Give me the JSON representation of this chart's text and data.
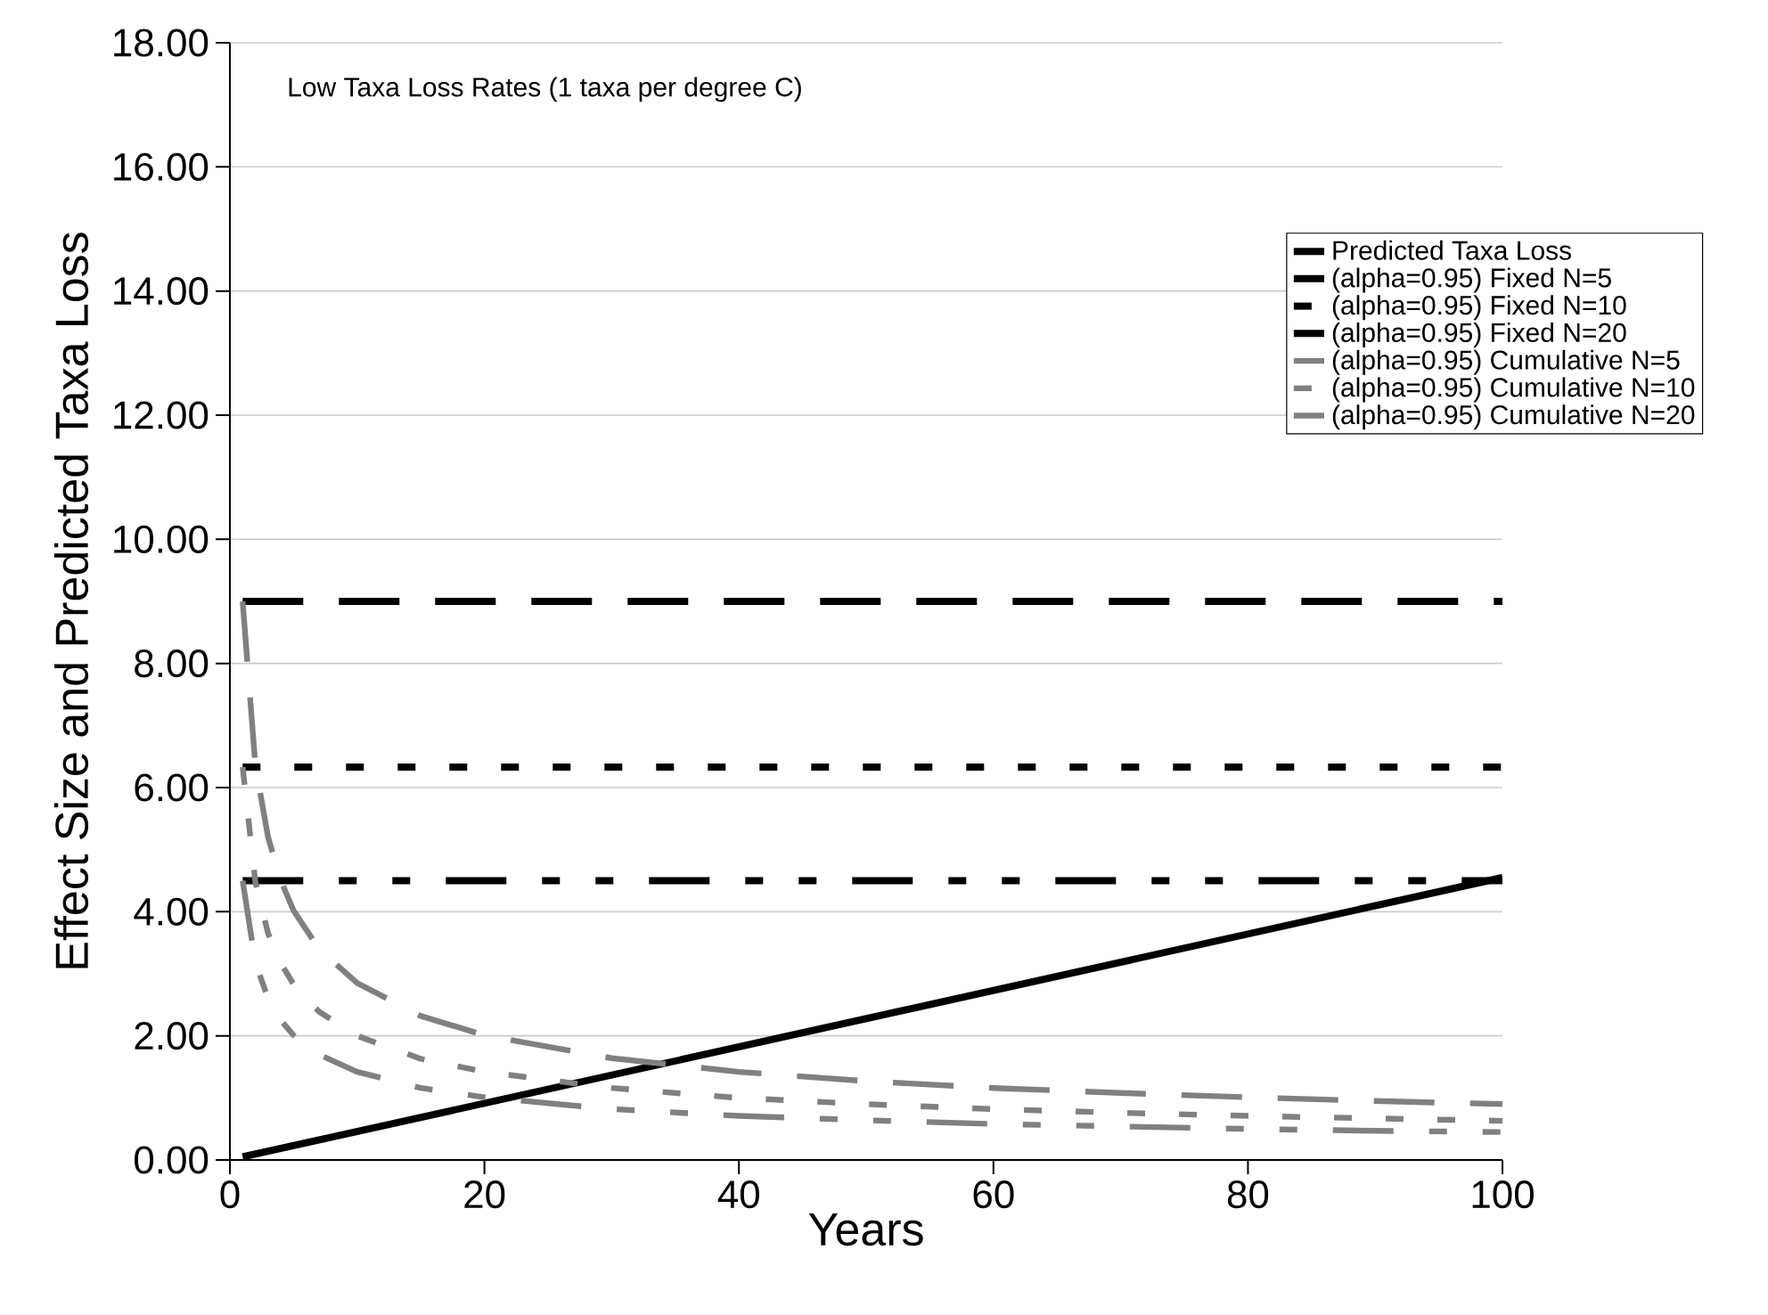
{
  "chart_data": {
    "type": "line",
    "xlabel": "Years",
    "ylabel": "Effect Size and Predicted Taxa Loss",
    "annotations": [
      "Low Taxa Loss Rates (1 taxa per degree C)"
    ],
    "xlim": [
      0,
      100
    ],
    "xticks": [
      0,
      20,
      40,
      60,
      80,
      100
    ],
    "ylim": [
      0,
      18
    ],
    "yticks": [
      {
        "value": 0,
        "label": "0.00"
      },
      {
        "value": 2,
        "label": "2.00"
      },
      {
        "value": 4,
        "label": "4.00"
      },
      {
        "value": 6,
        "label": "6.00"
      },
      {
        "value": 8,
        "label": "8.00"
      },
      {
        "value": 10,
        "label": "10.00"
      },
      {
        "value": 12,
        "label": "12.00"
      },
      {
        "value": 14,
        "label": "14.00"
      },
      {
        "value": 16,
        "label": "16.00"
      },
      {
        "value": 18,
        "label": "18.00"
      }
    ],
    "grid": "y",
    "legend": "top right",
    "marker": "none",
    "series": [
      {
        "name": "Predicted Taxa Loss",
        "color": "#000000",
        "line_style": "solid",
        "x": [
          1,
          100
        ],
        "values": [
          0.05,
          4.55
        ]
      },
      {
        "name": "(alpha=0.95) Fixed N=5",
        "color": "#000000",
        "line_style": "dashed",
        "x": [
          1,
          100
        ],
        "values": [
          9.0,
          9.0
        ]
      },
      {
        "name": "(alpha=0.95) Fixed N=10",
        "color": "#000000",
        "line_style": "dotted",
        "x": [
          1,
          100
        ],
        "values": [
          6.33,
          6.33
        ]
      },
      {
        "name": "(alpha=0.95) Fixed N=20",
        "color": "#000000",
        "line_style": "dashdot",
        "x": [
          1,
          100
        ],
        "values": [
          4.5,
          4.5
        ]
      },
      {
        "name": "(alpha=0.95) Cumulative N=5",
        "color": "#808080",
        "line_style": "dashed",
        "x": [
          1,
          2,
          3,
          4,
          5,
          7,
          10,
          15,
          20,
          30,
          40,
          50,
          60,
          70,
          80,
          90,
          100
        ],
        "values": [
          9.0,
          6.36,
          5.2,
          4.5,
          4.02,
          3.4,
          2.85,
          2.32,
          2.01,
          1.64,
          1.42,
          1.27,
          1.16,
          1.08,
          1.01,
          0.95,
          0.9
        ]
      },
      {
        "name": "(alpha=0.95) Cumulative N=10",
        "color": "#808080",
        "line_style": "dotted",
        "x": [
          1,
          2,
          3,
          4,
          5,
          7,
          10,
          15,
          20,
          30,
          40,
          50,
          60,
          70,
          80,
          90,
          100
        ],
        "values": [
          6.33,
          4.48,
          3.65,
          3.17,
          2.83,
          2.39,
          2.0,
          1.63,
          1.42,
          1.16,
          1.0,
          0.9,
          0.82,
          0.76,
          0.71,
          0.67,
          0.63
        ]
      },
      {
        "name": "(alpha=0.95) Cumulative N=20",
        "color": "#808080",
        "line_style": "dashdot",
        "x": [
          1,
          2,
          3,
          4,
          5,
          7,
          10,
          15,
          20,
          30,
          40,
          50,
          60,
          70,
          80,
          90,
          100
        ],
        "values": [
          4.5,
          3.18,
          2.6,
          2.25,
          2.01,
          1.7,
          1.42,
          1.16,
          1.01,
          0.82,
          0.71,
          0.64,
          0.58,
          0.54,
          0.5,
          0.47,
          0.45
        ]
      }
    ]
  }
}
